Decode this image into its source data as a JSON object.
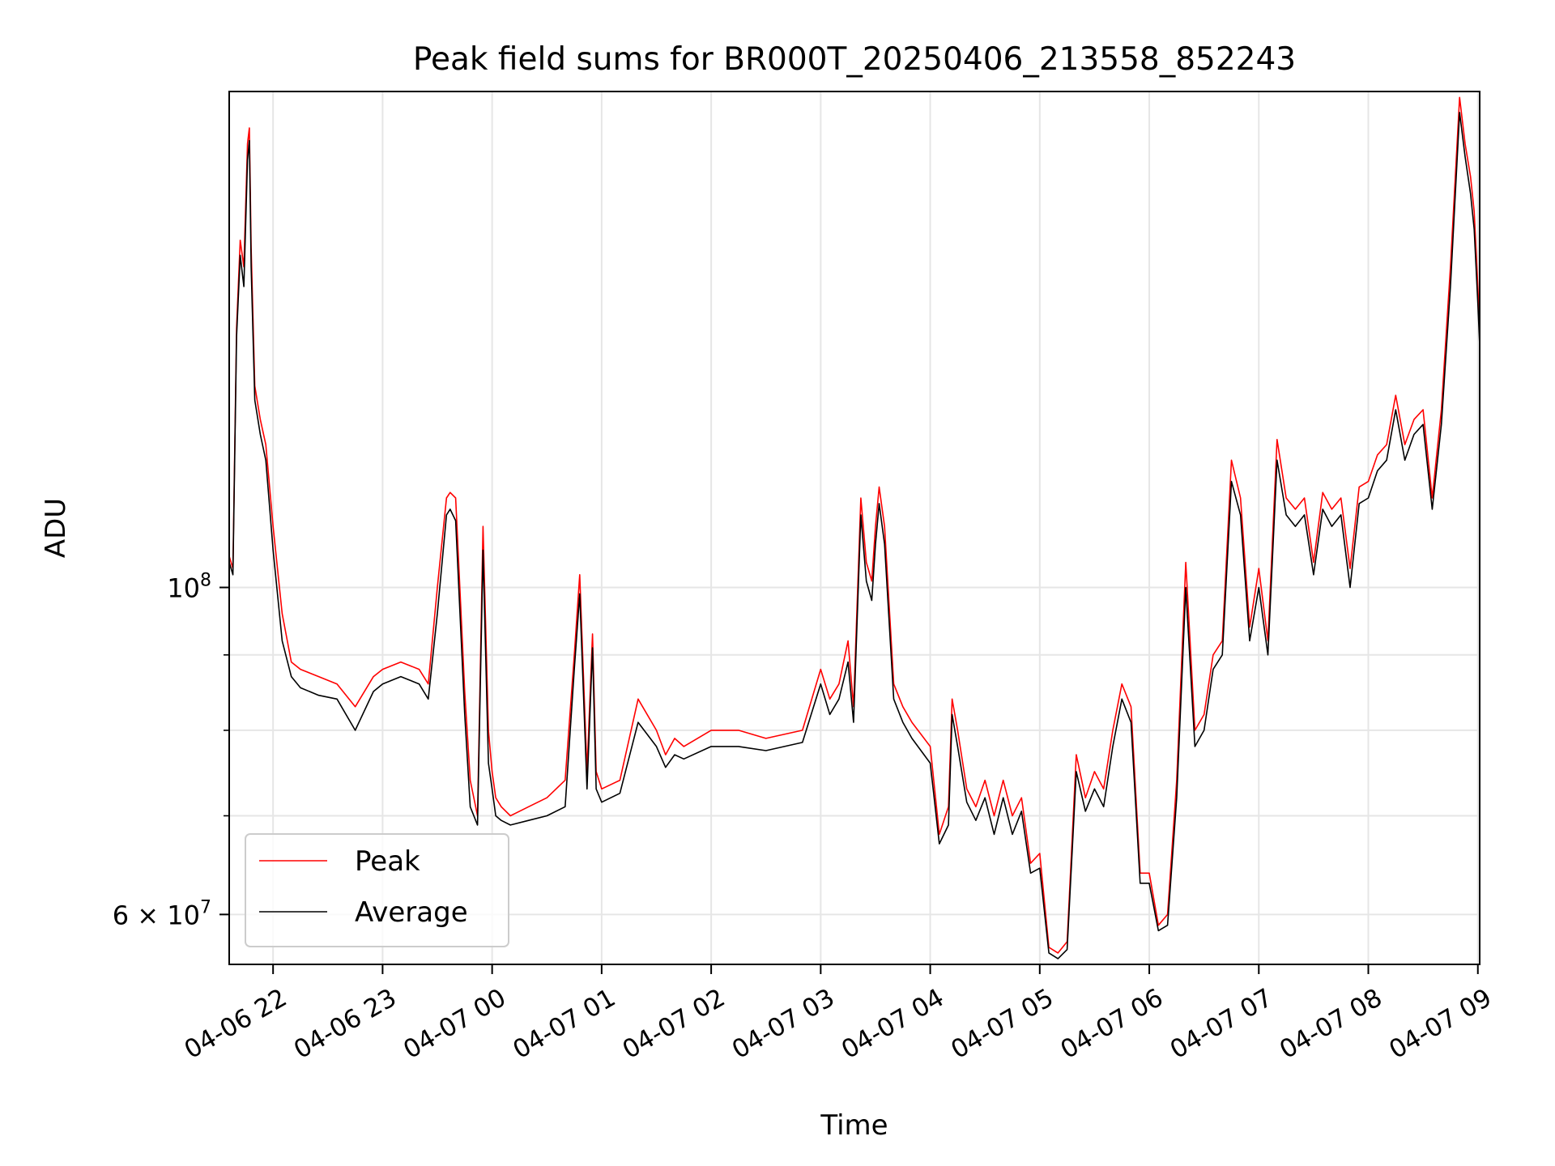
{
  "chart_data": {
    "type": "line",
    "title": "Peak field sums for BR000T_20250406_213558_852243",
    "xlabel": "Time",
    "ylabel": "ADU",
    "yscale": "log",
    "grid": true,
    "legend_position": "lower-left",
    "xlim": [
      "2025-04-06 21:35:58",
      "2025-04-07 09:01:00"
    ],
    "ylim": [
      55500000,
      217000000
    ],
    "x_ticks": [
      {
        "value": "2025-04-06 22:00",
        "label": "04-06 22"
      },
      {
        "value": "2025-04-06 23:00",
        "label": "04-06 23"
      },
      {
        "value": "2025-04-07 00:00",
        "label": "04-07 00"
      },
      {
        "value": "2025-04-07 01:00",
        "label": "04-07 01"
      },
      {
        "value": "2025-04-07 02:00",
        "label": "04-07 02"
      },
      {
        "value": "2025-04-07 03:00",
        "label": "04-07 03"
      },
      {
        "value": "2025-04-07 04:00",
        "label": "04-07 04"
      },
      {
        "value": "2025-04-07 05:00",
        "label": "04-07 05"
      },
      {
        "value": "2025-04-07 06:00",
        "label": "04-07 06"
      },
      {
        "value": "2025-04-07 07:00",
        "label": "04-07 07"
      },
      {
        "value": "2025-04-07 08:00",
        "label": "04-07 08"
      },
      {
        "value": "2025-04-07 09:00",
        "label": "04-07 09"
      }
    ],
    "y_ticks_major": [
      {
        "value": 60000000,
        "mantissa": "6",
        "base": "10",
        "exponent": "7"
      },
      {
        "value": 100000000,
        "mantissa": "",
        "base": "10",
        "exponent": "8"
      }
    ],
    "y_ticks_minor": [
      70000000,
      80000000,
      90000000
    ],
    "series": [
      {
        "name": "Peak",
        "color": "#ff0000",
        "x": [
          "2025-04-06 21:35:58",
          "2025-04-06 21:38",
          "2025-04-06 21:40",
          "2025-04-06 21:42",
          "2025-04-06 21:44",
          "2025-04-06 21:46",
          "2025-04-06 21:47",
          "2025-04-06 21:48",
          "2025-04-06 21:50",
          "2025-04-06 21:53",
          "2025-04-06 21:56",
          "2025-04-06 22:00",
          "2025-04-06 22:05",
          "2025-04-06 22:10",
          "2025-04-06 22:15",
          "2025-04-06 22:25",
          "2025-04-06 22:35",
          "2025-04-06 22:45",
          "2025-04-06 22:55",
          "2025-04-06 23:00",
          "2025-04-06 23:10",
          "2025-04-06 23:20",
          "2025-04-06 23:25",
          "2025-04-06 23:30",
          "2025-04-06 23:35",
          "2025-04-06 23:37",
          "2025-04-06 23:40",
          "2025-04-06 23:45",
          "2025-04-06 23:48",
          "2025-04-06 23:52",
          "2025-04-06 23:55",
          "2025-04-06 23:58",
          "2025-04-07 00:00",
          "2025-04-07 00:02",
          "2025-04-07 00:05",
          "2025-04-07 00:10",
          "2025-04-07 00:20",
          "2025-04-07 00:30",
          "2025-04-07 00:40",
          "2025-04-07 00:45",
          "2025-04-07 00:48",
          "2025-04-07 00:52",
          "2025-04-07 00:55",
          "2025-04-07 00:57",
          "2025-04-07 01:00",
          "2025-04-07 01:10",
          "2025-04-07 01:20",
          "2025-04-07 01:30",
          "2025-04-07 01:35",
          "2025-04-07 01:40",
          "2025-04-07 01:45",
          "2025-04-07 02:00",
          "2025-04-07 02:15",
          "2025-04-07 02:30",
          "2025-04-07 02:50",
          "2025-04-07 03:00",
          "2025-04-07 03:05",
          "2025-04-07 03:10",
          "2025-04-07 03:15",
          "2025-04-07 03:18",
          "2025-04-07 03:22",
          "2025-04-07 03:25",
          "2025-04-07 03:28",
          "2025-04-07 03:30",
          "2025-04-07 03:32",
          "2025-04-07 03:35",
          "2025-04-07 03:40",
          "2025-04-07 03:45",
          "2025-04-07 03:50",
          "2025-04-07 04:00",
          "2025-04-07 04:05",
          "2025-04-07 04:10",
          "2025-04-07 04:12",
          "2025-04-07 04:15",
          "2025-04-07 04:20",
          "2025-04-07 04:25",
          "2025-04-07 04:30",
          "2025-04-07 04:35",
          "2025-04-07 04:40",
          "2025-04-07 04:45",
          "2025-04-07 04:50",
          "2025-04-07 04:55",
          "2025-04-07 05:00",
          "2025-04-07 05:05",
          "2025-04-07 05:10",
          "2025-04-07 05:15",
          "2025-04-07 05:20",
          "2025-04-07 05:25",
          "2025-04-07 05:30",
          "2025-04-07 05:35",
          "2025-04-07 05:40",
          "2025-04-07 05:45",
          "2025-04-07 05:50",
          "2025-04-07 05:55",
          "2025-04-07 06:00",
          "2025-04-07 06:05",
          "2025-04-07 06:10",
          "2025-04-07 06:15",
          "2025-04-07 06:20",
          "2025-04-07 06:25",
          "2025-04-07 06:30",
          "2025-04-07 06:35",
          "2025-04-07 06:40",
          "2025-04-07 06:45",
          "2025-04-07 06:50",
          "2025-04-07 06:55",
          "2025-04-07 07:00",
          "2025-04-07 07:05",
          "2025-04-07 07:10",
          "2025-04-07 07:15",
          "2025-04-07 07:20",
          "2025-04-07 07:25",
          "2025-04-07 07:30",
          "2025-04-07 07:35",
          "2025-04-07 07:40",
          "2025-04-07 07:45",
          "2025-04-07 07:50",
          "2025-04-07 07:55",
          "2025-04-07 08:00",
          "2025-04-07 08:05",
          "2025-04-07 08:10",
          "2025-04-07 08:15",
          "2025-04-07 08:20",
          "2025-04-07 08:25",
          "2025-04-07 08:30",
          "2025-04-07 08:35",
          "2025-04-07 08:40",
          "2025-04-07 08:45",
          "2025-04-07 08:50",
          "2025-04-07 08:53",
          "2025-04-07 08:56",
          "2025-04-07 08:58",
          "2025-04-07 09:00",
          "2025-04-07 09:01"
        ],
        "values": [
          105000000,
          103000000,
          150000000,
          172000000,
          165000000,
          200000000,
          205000000,
          170000000,
          137000000,
          130000000,
          125000000,
          110000000,
          96000000,
          89000000,
          88000000,
          87000000,
          86000000,
          83000000,
          87000000,
          88000000,
          89000000,
          88000000,
          86000000,
          100000000,
          115000000,
          116000000,
          115000000,
          85000000,
          74000000,
          70000000,
          110000000,
          80000000,
          75000000,
          72000000,
          71000000,
          70000000,
          71000000,
          72000000,
          74000000,
          90000000,
          102000000,
          75000000,
          93000000,
          75000000,
          73000000,
          74000000,
          84000000,
          80000000,
          77000000,
          79000000,
          78000000,
          80000000,
          80000000,
          79000000,
          80000000,
          88000000,
          84000000,
          86000000,
          92000000,
          83000000,
          115000000,
          104000000,
          101000000,
          110000000,
          117000000,
          110000000,
          86000000,
          83000000,
          81000000,
          78000000,
          68000000,
          71000000,
          84000000,
          80000000,
          73000000,
          71000000,
          74000000,
          70000000,
          74000000,
          70000000,
          72000000,
          65000000,
          66000000,
          57000000,
          56500000,
          57500000,
          77000000,
          72000000,
          75000000,
          73000000,
          80000000,
          86000000,
          83000000,
          64000000,
          64000000,
          59000000,
          60000000,
          74000000,
          104000000,
          80000000,
          82000000,
          90000000,
          92000000,
          122000000,
          115000000,
          94000000,
          103000000,
          92000000,
          126000000,
          115000000,
          113000000,
          115000000,
          104000000,
          116000000,
          113000000,
          115000000,
          103000000,
          117000000,
          118000000,
          123000000,
          125000000,
          135000000,
          125000000,
          130000000,
          132000000,
          115000000,
          132000000,
          165000000,
          215000000,
          200000000,
          190000000,
          180000000,
          160000000,
          150000000
        ]
      },
      {
        "name": "Average",
        "color": "#000000",
        "x": [
          "2025-04-06 21:35:58",
          "2025-04-06 21:38",
          "2025-04-06 21:40",
          "2025-04-06 21:42",
          "2025-04-06 21:44",
          "2025-04-06 21:46",
          "2025-04-06 21:47",
          "2025-04-06 21:48",
          "2025-04-06 21:50",
          "2025-04-06 21:53",
          "2025-04-06 21:56",
          "2025-04-06 22:00",
          "2025-04-06 22:05",
          "2025-04-06 22:10",
          "2025-04-06 22:15",
          "2025-04-06 22:25",
          "2025-04-06 22:35",
          "2025-04-06 22:45",
          "2025-04-06 22:55",
          "2025-04-06 23:00",
          "2025-04-06 23:10",
          "2025-04-06 23:20",
          "2025-04-06 23:25",
          "2025-04-06 23:30",
          "2025-04-06 23:35",
          "2025-04-06 23:37",
          "2025-04-06 23:40",
          "2025-04-06 23:45",
          "2025-04-06 23:48",
          "2025-04-06 23:52",
          "2025-04-06 23:55",
          "2025-04-06 23:58",
          "2025-04-07 00:00",
          "2025-04-07 00:02",
          "2025-04-07 00:05",
          "2025-04-07 00:10",
          "2025-04-07 00:20",
          "2025-04-07 00:30",
          "2025-04-07 00:40",
          "2025-04-07 00:45",
          "2025-04-07 00:48",
          "2025-04-07 00:52",
          "2025-04-07 00:55",
          "2025-04-07 00:57",
          "2025-04-07 01:00",
          "2025-04-07 01:10",
          "2025-04-07 01:20",
          "2025-04-07 01:30",
          "2025-04-07 01:35",
          "2025-04-07 01:40",
          "2025-04-07 01:45",
          "2025-04-07 02:00",
          "2025-04-07 02:15",
          "2025-04-07 02:30",
          "2025-04-07 02:50",
          "2025-04-07 03:00",
          "2025-04-07 03:05",
          "2025-04-07 03:10",
          "2025-04-07 03:15",
          "2025-04-07 03:18",
          "2025-04-07 03:22",
          "2025-04-07 03:25",
          "2025-04-07 03:28",
          "2025-04-07 03:30",
          "2025-04-07 03:32",
          "2025-04-07 03:35",
          "2025-04-07 03:40",
          "2025-04-07 03:45",
          "2025-04-07 03:50",
          "2025-04-07 04:00",
          "2025-04-07 04:05",
          "2025-04-07 04:10",
          "2025-04-07 04:12",
          "2025-04-07 04:15",
          "2025-04-07 04:20",
          "2025-04-07 04:25",
          "2025-04-07 04:30",
          "2025-04-07 04:35",
          "2025-04-07 04:40",
          "2025-04-07 04:45",
          "2025-04-07 04:50",
          "2025-04-07 04:55",
          "2025-04-07 05:00",
          "2025-04-07 05:05",
          "2025-04-07 05:10",
          "2025-04-07 05:15",
          "2025-04-07 05:20",
          "2025-04-07 05:25",
          "2025-04-07 05:30",
          "2025-04-07 05:35",
          "2025-04-07 05:40",
          "2025-04-07 05:45",
          "2025-04-07 05:50",
          "2025-04-07 05:55",
          "2025-04-07 06:00",
          "2025-04-07 06:05",
          "2025-04-07 06:10",
          "2025-04-07 06:15",
          "2025-04-07 06:20",
          "2025-04-07 06:25",
          "2025-04-07 06:30",
          "2025-04-07 06:35",
          "2025-04-07 06:40",
          "2025-04-07 06:45",
          "2025-04-07 06:50",
          "2025-04-07 06:55",
          "2025-04-07 07:00",
          "2025-04-07 07:05",
          "2025-04-07 07:10",
          "2025-04-07 07:15",
          "2025-04-07 07:20",
          "2025-04-07 07:25",
          "2025-04-07 07:30",
          "2025-04-07 07:35",
          "2025-04-07 07:40",
          "2025-04-07 07:45",
          "2025-04-07 07:50",
          "2025-04-07 07:55",
          "2025-04-07 08:00",
          "2025-04-07 08:05",
          "2025-04-07 08:10",
          "2025-04-07 08:15",
          "2025-04-07 08:20",
          "2025-04-07 08:25",
          "2025-04-07 08:30",
          "2025-04-07 08:35",
          "2025-04-07 08:40",
          "2025-04-07 08:45",
          "2025-04-07 08:50",
          "2025-04-07 08:53",
          "2025-04-07 08:56",
          "2025-04-07 08:58",
          "2025-04-07 09:00",
          "2025-04-07 09:01"
        ],
        "values": [
          104000000,
          102000000,
          148000000,
          168000000,
          160000000,
          195000000,
          201000000,
          165000000,
          134000000,
          127000000,
          122000000,
          106000000,
          92000000,
          87000000,
          85500000,
          84500000,
          84000000,
          80000000,
          85000000,
          86000000,
          87000000,
          86000000,
          84000000,
          96000000,
          112000000,
          113000000,
          111000000,
          82000000,
          71000000,
          69000000,
          106000000,
          76000000,
          73000000,
          70000000,
          69500000,
          69000000,
          69500000,
          70000000,
          71000000,
          88000000,
          99000000,
          73000000,
          91000000,
          73000000,
          71500000,
          72500000,
          81000000,
          78000000,
          75500000,
          77000000,
          76500000,
          78000000,
          78000000,
          77500000,
          78500000,
          86000000,
          82000000,
          84000000,
          89000000,
          81000000,
          112000000,
          101000000,
          98000000,
          107000000,
          114000000,
          107000000,
          84000000,
          81000000,
          79000000,
          76000000,
          67000000,
          69000000,
          82000000,
          78000000,
          71500000,
          69500000,
          72000000,
          68000000,
          72000000,
          68000000,
          70500000,
          64000000,
          64500000,
          56500000,
          56000000,
          56800000,
          75000000,
          70500000,
          73000000,
          71000000,
          78000000,
          84000000,
          81000000,
          63000000,
          63000000,
          58500000,
          59000000,
          72000000,
          100000000,
          78000000,
          80000000,
          88000000,
          90000000,
          118000000,
          112000000,
          92000000,
          100000000,
          90000000,
          122000000,
          112000000,
          110000000,
          112000000,
          102000000,
          113000000,
          110000000,
          112000000,
          100000000,
          114000000,
          115000000,
          120000000,
          122000000,
          132000000,
          122000000,
          127000000,
          129000000,
          113000000,
          129000000,
          160000000,
          210000000,
          196000000,
          185000000,
          175000000,
          156000000,
          146000000
        ]
      }
    ]
  }
}
